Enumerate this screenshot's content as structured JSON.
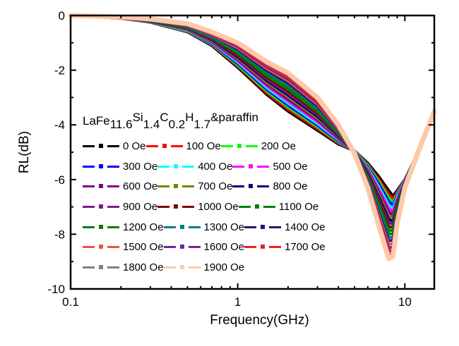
{
  "chart_data": {
    "type": "line",
    "title": "",
    "xlabel": "Frequency(GHz)",
    "ylabel": "RL(dB)",
    "xscale": "log",
    "xlim": [
      0.1,
      15
    ],
    "ylim": [
      -10,
      0
    ],
    "xticks": [
      "0.1",
      "1",
      "10"
    ],
    "yticks": [
      "0",
      "-2",
      "-4",
      "-6",
      "-8",
      "-10"
    ],
    "legend_title": {
      "base": "LaFe",
      "s1": "11.6",
      "el2": "Si",
      "s2": "1.4",
      "el3": "C",
      "s3": "0.2",
      "el4": "H",
      "s4": "1.7",
      "tail": "&paraffin"
    },
    "legend_placement": "center-left",
    "x": [
      0.1,
      0.2,
      0.3,
      0.5,
      0.7,
      1,
      1.5,
      2,
      3,
      4,
      5,
      6,
      7,
      8,
      8.5,
      9,
      10,
      12,
      15
    ],
    "series": [
      {
        "name": "0 Oe",
        "color": "#000000",
        "values": [
          0,
          -0.1,
          -0.25,
          -0.6,
          -1.1,
          -1.9,
          -2.9,
          -3.5,
          -4.2,
          -4.7,
          -4.95,
          -5.4,
          -5.9,
          -6.4,
          -6.6,
          -6.4,
          -6.0,
          -5.0,
          -3.5
        ]
      },
      {
        "name": "100 Oe",
        "color": "#ff0000",
        "values": [
          0,
          -0.1,
          -0.24,
          -0.58,
          -1.07,
          -1.85,
          -2.84,
          -3.43,
          -4.14,
          -4.66,
          -4.96,
          -5.45,
          -6.0,
          -6.53,
          -6.72,
          -6.46,
          -6.02,
          -5.0,
          -3.5
        ]
      },
      {
        "name": "200 Oe",
        "color": "#00ff00",
        "values": [
          0,
          -0.09,
          -0.24,
          -0.57,
          -1.05,
          -1.81,
          -2.77,
          -3.35,
          -4.07,
          -4.63,
          -4.96,
          -5.49,
          -6.09,
          -6.66,
          -6.83,
          -6.53,
          -6.03,
          -5.0,
          -3.5
        ]
      },
      {
        "name": "300 Oe",
        "color": "#0000ff",
        "values": [
          0,
          -0.09,
          -0.23,
          -0.55,
          -1.02,
          -1.76,
          -2.71,
          -3.28,
          -4.01,
          -4.59,
          -4.97,
          -5.54,
          -6.18,
          -6.79,
          -6.95,
          -6.59,
          -6.05,
          -5.0,
          -3.5
        ]
      },
      {
        "name": "400 Oe",
        "color": "#00ffff",
        "values": [
          0,
          -0.09,
          -0.22,
          -0.54,
          -0.99,
          -1.71,
          -2.65,
          -3.21,
          -3.95,
          -4.55,
          -4.97,
          -5.59,
          -6.28,
          -6.93,
          -7.06,
          -6.65,
          -6.06,
          -5.0,
          -3.5
        ]
      },
      {
        "name": "500 Oe",
        "color": "#ff00ff",
        "values": [
          0,
          -0.09,
          -0.22,
          -0.52,
          -0.97,
          -1.66,
          -2.58,
          -3.13,
          -3.88,
          -4.52,
          -4.98,
          -5.64,
          -6.37,
          -7.06,
          -7.18,
          -6.72,
          -6.08,
          -5.0,
          -3.5
        ]
      },
      {
        "name": "600 Oe",
        "color": "#800080",
        "values": [
          0,
          -0.08,
          -0.21,
          -0.51,
          -0.94,
          -1.62,
          -2.52,
          -3.06,
          -3.82,
          -4.48,
          -4.98,
          -5.68,
          -6.47,
          -7.19,
          -7.29,
          -6.78,
          -6.09,
          -5.0,
          -3.5
        ]
      },
      {
        "name": "700 Oe",
        "color": "#808000",
        "values": [
          0,
          -0.08,
          -0.21,
          -0.49,
          -0.92,
          -1.57,
          -2.46,
          -2.98,
          -3.76,
          -4.44,
          -4.99,
          -5.73,
          -6.56,
          -7.32,
          -7.41,
          -6.84,
          -6.11,
          -5.0,
          -3.5
        ]
      },
      {
        "name": "800 Oe",
        "color": "#000080",
        "values": [
          0,
          -0.08,
          -0.2,
          -0.47,
          -0.89,
          -1.52,
          -2.39,
          -2.91,
          -3.69,
          -4.41,
          -4.99,
          -5.78,
          -6.66,
          -7.45,
          -7.53,
          -6.91,
          -6.13,
          -5.0,
          -3.5
        ]
      },
      {
        "name": "900 Oe",
        "color": "#7a1a8a",
        "values": [
          0,
          -0.08,
          -0.19,
          -0.46,
          -0.86,
          -1.47,
          -2.33,
          -2.84,
          -3.63,
          -4.37,
          -5.0,
          -5.83,
          -6.75,
          -7.58,
          -7.64,
          -6.97,
          -6.14,
          -5.0,
          -3.5
        ]
      },
      {
        "name": "1000 Oe",
        "color": "#800000",
        "values": [
          0,
          -0.07,
          -0.19,
          -0.44,
          -0.84,
          -1.43,
          -2.27,
          -2.76,
          -3.57,
          -4.33,
          -5.0,
          -5.87,
          -6.85,
          -7.72,
          -7.76,
          -7.03,
          -6.16,
          -5.0,
          -3.5
        ]
      },
      {
        "name": "1100 Oe",
        "color": "#008000",
        "values": [
          0,
          -0.07,
          -0.18,
          -0.43,
          -0.81,
          -1.38,
          -2.21,
          -2.69,
          -3.51,
          -4.3,
          -5.01,
          -5.92,
          -6.94,
          -7.85,
          -7.87,
          -7.09,
          -6.17,
          -5.0,
          -3.5
        ]
      },
      {
        "name": "1200 Oe",
        "color": "#0a7a0a",
        "values": [
          0,
          -0.07,
          -0.17,
          -0.41,
          -0.78,
          -1.33,
          -2.14,
          -2.62,
          -3.44,
          -4.26,
          -5.01,
          -5.97,
          -7.04,
          -7.98,
          -7.99,
          -7.16,
          -6.19,
          -5.0,
          -3.5
        ]
      },
      {
        "name": "1300 Oe",
        "color": "#008080",
        "values": [
          0,
          -0.07,
          -0.17,
          -0.39,
          -0.76,
          -1.28,
          -2.08,
          -2.54,
          -3.38,
          -4.22,
          -5.02,
          -6.02,
          -7.13,
          -8.11,
          -8.11,
          -7.22,
          -6.21,
          -5.0,
          -3.5
        ]
      },
      {
        "name": "1400 Oe",
        "color": "#1a1a80",
        "values": [
          0,
          -0.06,
          -0.16,
          -0.38,
          -0.73,
          -1.24,
          -2.02,
          -2.47,
          -3.32,
          -4.18,
          -5.02,
          -6.06,
          -7.23,
          -8.24,
          -8.22,
          -7.28,
          -6.22,
          -5.0,
          -3.5
        ]
      },
      {
        "name": "1500 Oe",
        "color": "#e8553a",
        "values": [
          0,
          -0.06,
          -0.16,
          -0.36,
          -0.71,
          -1.19,
          -1.95,
          -2.39,
          -3.25,
          -4.15,
          -5.03,
          -6.11,
          -7.32,
          -8.37,
          -8.34,
          -7.35,
          -6.24,
          -5.0,
          -3.5
        ]
      },
      {
        "name": "1600 Oe",
        "color": "#7d1f9e",
        "values": [
          0,
          -0.06,
          -0.15,
          -0.35,
          -0.68,
          -1.14,
          -1.89,
          -2.32,
          -3.19,
          -4.11,
          -5.03,
          -6.16,
          -7.42,
          -8.51,
          -8.45,
          -7.41,
          -6.25,
          -5.0,
          -3.5
        ]
      },
      {
        "name": "1700 Oe",
        "color": "#e82020",
        "values": [
          0,
          -0.06,
          -0.14,
          -0.33,
          -0.65,
          -1.09,
          -1.83,
          -2.25,
          -3.13,
          -4.07,
          -5.04,
          -6.21,
          -7.51,
          -8.64,
          -8.57,
          -7.47,
          -6.27,
          -5.0,
          -3.5
        ]
      },
      {
        "name": "1800 Oe",
        "color": "#808080",
        "values": [
          0,
          -0.05,
          -0.14,
          -0.32,
          -0.63,
          -1.05,
          -1.76,
          -2.17,
          -3.06,
          -4.04,
          -5.04,
          -6.25,
          -7.61,
          -8.77,
          -8.68,
          -7.54,
          -6.28,
          -5.0,
          -3.5
        ]
      },
      {
        "name": "1900 Oe",
        "color": "#ffc8a8",
        "values": [
          0,
          -0.05,
          -0.13,
          -0.3,
          -0.6,
          -1.0,
          -1.7,
          -2.1,
          -3.0,
          -4.0,
          -5.05,
          -6.3,
          -7.7,
          -8.9,
          -8.8,
          -7.6,
          -6.3,
          -5.0,
          -3.5
        ]
      }
    ]
  }
}
